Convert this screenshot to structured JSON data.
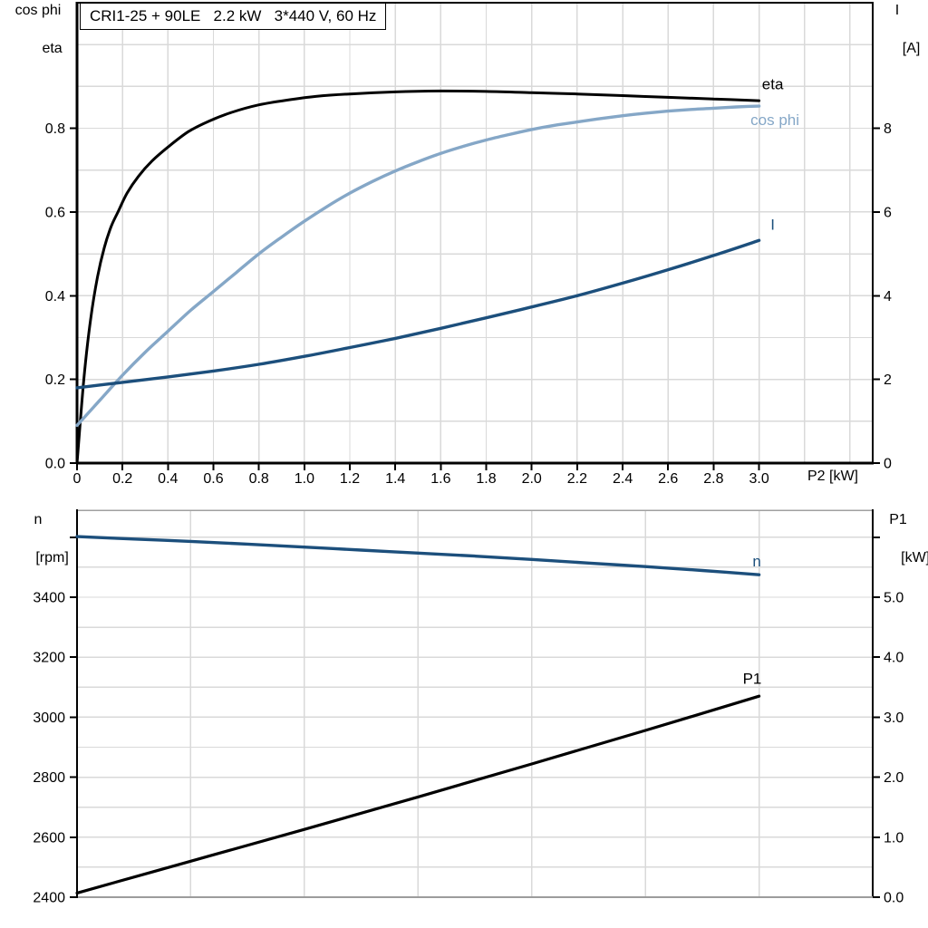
{
  "title_box": {
    "text": "CRI1-25 + 90LE   2.2 kW   3*440 V, 60 Hz"
  },
  "axis_titles": {
    "top_left": [
      "cos phi",
      "eta"
    ],
    "top_right": [
      "I",
      "[A]"
    ],
    "bottom_left": [
      "n",
      "[rpm]"
    ],
    "bottom_right": [
      "P1",
      "[kW]"
    ],
    "x": "P2 [kW]"
  },
  "colors": {
    "black": "#000000",
    "dark_blue": "#1c4f7c",
    "light_blue": "#85a7c7",
    "grid": "#d9d9d9",
    "frame_gray": "#9c9c9c",
    "text": "#000000"
  },
  "chart_data": [
    {
      "id": "top",
      "type": "line",
      "title": "CRI1-25 + 90LE   2.2 kW   3*440 V, 60 Hz",
      "xlabel": "P2 [kW]",
      "xlim": [
        0,
        3.5
      ],
      "x_grid_step": 0.2,
      "x_ticks": {
        "values": [
          0,
          0.2,
          0.4,
          0.6,
          0.8,
          1.0,
          1.2,
          1.4,
          1.6,
          1.8,
          2.0,
          2.2,
          2.4,
          2.6,
          2.8,
          3.0
        ],
        "labels": [
          "0",
          "0.2",
          "0.4",
          "0.6",
          "0.8",
          "1.0",
          "1.2",
          "1.4",
          "1.6",
          "1.8",
          "2.0",
          "2.2",
          "2.4",
          "2.6",
          "2.8",
          "3.0"
        ]
      },
      "left_axis": {
        "label": "cos phi / eta",
        "lim": [
          0,
          1.1
        ],
        "grid_step": 0.1,
        "ticks": {
          "values": [
            0,
            0.2,
            0.4,
            0.6,
            0.8
          ],
          "labels": [
            "0.0",
            "0.2",
            "0.4",
            "0.6",
            "0.8"
          ]
        }
      },
      "right_axis": {
        "label": "I [A]",
        "lim": [
          0,
          11
        ],
        "ticks": {
          "values": [
            0,
            2,
            4,
            6,
            8
          ],
          "labels": [
            "0",
            "2",
            "4",
            "6",
            "8"
          ]
        }
      },
      "series": [
        {
          "name": "eta",
          "label": "eta",
          "axis": "left",
          "color_key": "black",
          "width": 3,
          "label_at": [
            3.06,
            0.905
          ],
          "points": [
            [
              0,
              0
            ],
            [
              0.03,
              0.2
            ],
            [
              0.06,
              0.345
            ],
            [
              0.09,
              0.445
            ],
            [
              0.12,
              0.515
            ],
            [
              0.15,
              0.565
            ],
            [
              0.18,
              0.6
            ],
            [
              0.22,
              0.645
            ],
            [
              0.27,
              0.685
            ],
            [
              0.33,
              0.722
            ],
            [
              0.4,
              0.755
            ],
            [
              0.49,
              0.792
            ],
            [
              0.58,
              0.817
            ],
            [
              0.68,
              0.838
            ],
            [
              0.8,
              0.856
            ],
            [
              0.92,
              0.867
            ],
            [
              1.05,
              0.876
            ],
            [
              1.2,
              0.882
            ],
            [
              1.4,
              0.887
            ],
            [
              1.6,
              0.889
            ],
            [
              1.8,
              0.888
            ],
            [
              2.0,
              0.885
            ],
            [
              2.2,
              0.882
            ],
            [
              2.4,
              0.878
            ],
            [
              2.6,
              0.874
            ],
            [
              2.8,
              0.87
            ],
            [
              3.0,
              0.866
            ]
          ]
        },
        {
          "name": "cos phi",
          "label": "cos phi",
          "axis": "left",
          "color_key": "light_blue",
          "width": 3.4,
          "label_at": [
            3.07,
            0.82
          ],
          "points": [
            [
              0,
              0.09
            ],
            [
              0.1,
              0.15
            ],
            [
              0.2,
              0.21
            ],
            [
              0.3,
              0.265
            ],
            [
              0.4,
              0.315
            ],
            [
              0.5,
              0.365
            ],
            [
              0.6,
              0.41
            ],
            [
              0.7,
              0.455
            ],
            [
              0.8,
              0.5
            ],
            [
              0.9,
              0.54
            ],
            [
              1.0,
              0.578
            ],
            [
              1.1,
              0.613
            ],
            [
              1.2,
              0.645
            ],
            [
              1.3,
              0.673
            ],
            [
              1.4,
              0.698
            ],
            [
              1.5,
              0.72
            ],
            [
              1.6,
              0.74
            ],
            [
              1.7,
              0.757
            ],
            [
              1.8,
              0.772
            ],
            [
              1.9,
              0.785
            ],
            [
              2.0,
              0.797
            ],
            [
              2.1,
              0.807
            ],
            [
              2.2,
              0.815
            ],
            [
              2.3,
              0.823
            ],
            [
              2.4,
              0.83
            ],
            [
              2.5,
              0.836
            ],
            [
              2.6,
              0.841
            ],
            [
              2.7,
              0.845
            ],
            [
              2.8,
              0.848
            ],
            [
              2.9,
              0.851
            ],
            [
              3.0,
              0.853
            ]
          ]
        },
        {
          "name": "I",
          "label": "I",
          "axis": "right",
          "color_key": "dark_blue",
          "width": 3.4,
          "label_at": [
            3.06,
            5.7
          ],
          "points": [
            [
              0,
              1.8
            ],
            [
              0.2,
              1.93
            ],
            [
              0.4,
              2.06
            ],
            [
              0.6,
              2.2
            ],
            [
              0.8,
              2.36
            ],
            [
              1.0,
              2.55
            ],
            [
              1.2,
              2.76
            ],
            [
              1.4,
              2.98
            ],
            [
              1.6,
              3.22
            ],
            [
              1.8,
              3.47
            ],
            [
              2.0,
              3.73
            ],
            [
              2.2,
              4.0
            ],
            [
              2.4,
              4.3
            ],
            [
              2.6,
              4.62
            ],
            [
              2.8,
              4.96
            ],
            [
              3.0,
              5.32
            ]
          ]
        }
      ]
    },
    {
      "id": "bottom",
      "type": "line",
      "title": "",
      "xlabel": "",
      "xlim": [
        0,
        3.5
      ],
      "x_grid_step": 0.5,
      "x_ticks": {
        "values": [],
        "labels": []
      },
      "left_axis": {
        "label": "n [rpm]",
        "lim": [
          2400,
          3690
        ],
        "grid_step": 100,
        "ticks": {
          "values": [
            2400,
            2600,
            2800,
            3000,
            3200,
            3400,
            3600
          ],
          "labels": [
            "2400",
            "2600",
            "2800",
            "3000",
            "3200",
            "3400",
            ""
          ]
        }
      },
      "right_axis": {
        "label": "P1 [kW]",
        "lim": [
          0,
          6.45
        ],
        "ticks": {
          "values": [
            0,
            1,
            2,
            3,
            4,
            5,
            6
          ],
          "labels": [
            "0.0",
            "1.0",
            "2.0",
            "3.0",
            "4.0",
            "5.0",
            ""
          ]
        }
      },
      "series": [
        {
          "name": "n",
          "label": "n",
          "axis": "left",
          "color_key": "dark_blue",
          "width": 3.4,
          "label_at": [
            2.99,
            3520
          ],
          "points": [
            [
              0,
              3602
            ],
            [
              0.25,
              3594
            ],
            [
              0.5,
              3586
            ],
            [
              0.75,
              3577
            ],
            [
              1.0,
              3567
            ],
            [
              1.25,
              3557
            ],
            [
              1.5,
              3547
            ],
            [
              1.75,
              3537
            ],
            [
              2.0,
              3526
            ],
            [
              2.25,
              3514
            ],
            [
              2.5,
              3502
            ],
            [
              2.75,
              3489
            ],
            [
              3.0,
              3475
            ]
          ]
        },
        {
          "name": "P1",
          "label": "P1",
          "axis": "right",
          "color_key": "black",
          "width": 3.2,
          "label_at": [
            2.97,
            3.64
          ],
          "points": [
            [
              0,
              0.07
            ],
            [
              0.5,
              0.6
            ],
            [
              1.0,
              1.13
            ],
            [
              1.5,
              1.67
            ],
            [
              2.0,
              2.22
            ],
            [
              2.5,
              2.78
            ],
            [
              3.0,
              3.35
            ]
          ]
        }
      ]
    }
  ]
}
